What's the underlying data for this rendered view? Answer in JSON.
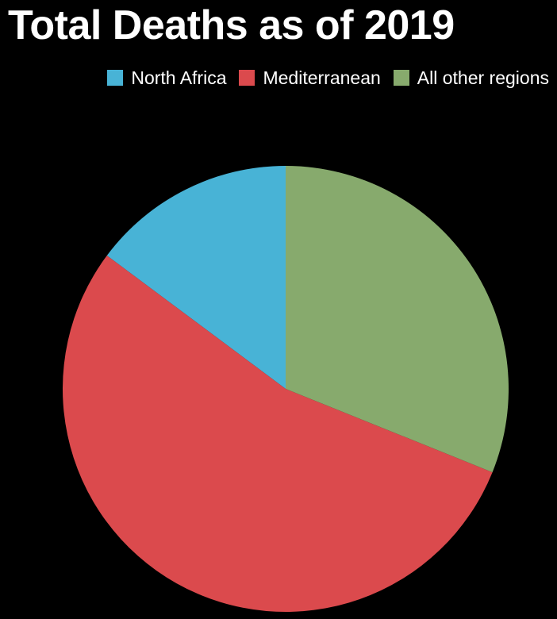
{
  "chart_data": {
    "type": "pie",
    "title": "Total Deaths as of 2019",
    "legend_position": "top-right",
    "slices": [
      {
        "label": "North Africa",
        "value": 14.8,
        "color": "#48b3d6"
      },
      {
        "label": "Mediterranean",
        "value": 54.1,
        "color": "#db4a4d"
      },
      {
        "label": "All other regions",
        "value": 31.1,
        "color": "#87aa6d"
      }
    ]
  }
}
